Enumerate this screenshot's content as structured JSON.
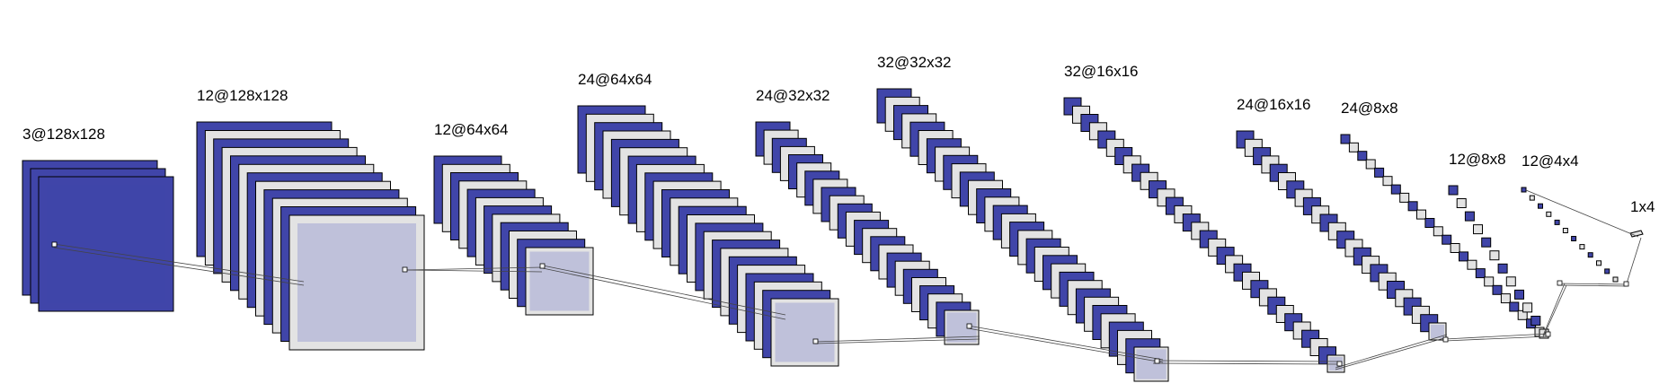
{
  "colors": {
    "blue_fill": "#4045a9",
    "gray_fill": "#e3e3e3",
    "highlight_fill": "#b9bbd8",
    "edge": "#000000",
    "line": "#444444"
  },
  "layers": [
    {
      "id": "l0",
      "label": "3@128x128"
    },
    {
      "id": "l1",
      "label": "12@128x128"
    },
    {
      "id": "l2",
      "label": "12@64x64"
    },
    {
      "id": "l3",
      "label": "24@64x64"
    },
    {
      "id": "l4",
      "label": "24@32x32"
    },
    {
      "id": "l5",
      "label": "32@32x32"
    },
    {
      "id": "l6",
      "label": "32@16x16"
    },
    {
      "id": "l7",
      "label": "24@16x16"
    },
    {
      "id": "l8",
      "label": "24@8x8"
    },
    {
      "id": "l9",
      "label": "12@8x8"
    },
    {
      "id": "l10",
      "label": "12@4x4"
    },
    {
      "id": "l11",
      "label": "1x4"
    }
  ]
}
